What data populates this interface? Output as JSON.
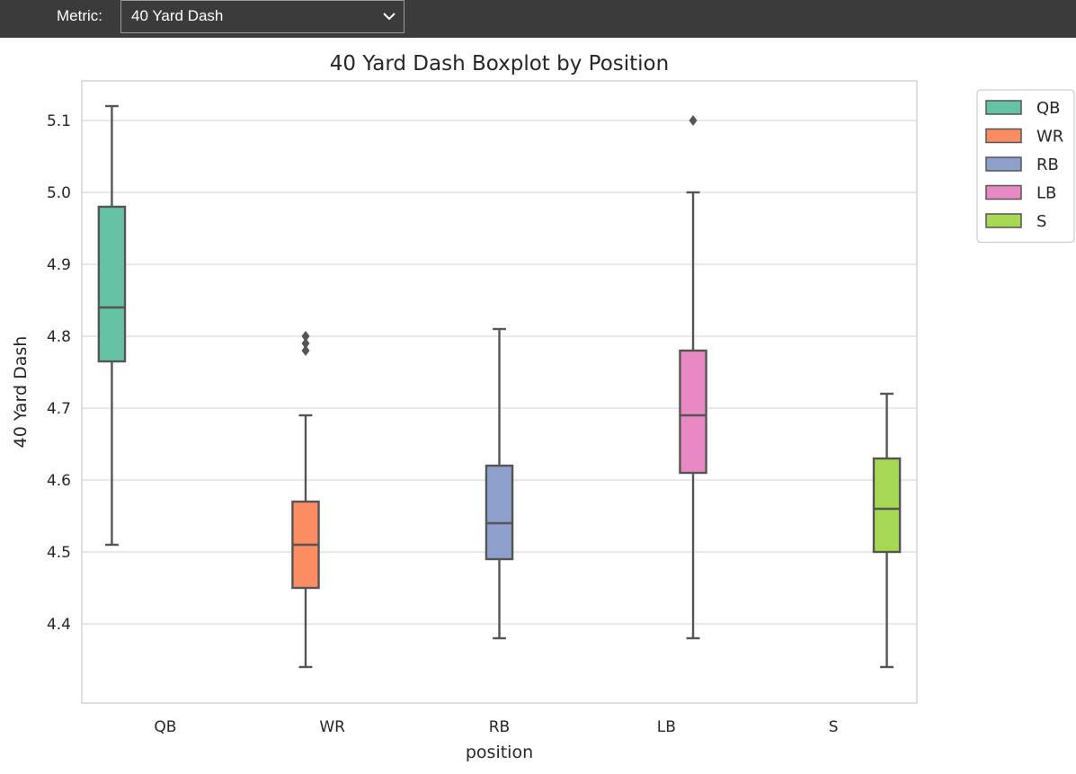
{
  "toolbar": {
    "metric_label": "Metric:",
    "metric_value": "40 Yard Dash"
  },
  "colors": {
    "QB": "#66c2a5",
    "WR": "#fc8d62",
    "RB": "#8da0cb",
    "LB": "#e78ac3",
    "S": "#a6d854",
    "line": "#555555",
    "grid": "#d9d9d9",
    "frame": "#cccccc"
  },
  "chart_data": {
    "type": "boxplot",
    "title": "40 Yard Dash Boxplot by Position",
    "xlabel": "position",
    "ylabel": "40 Yard Dash",
    "categories": [
      "QB",
      "WR",
      "RB",
      "LB",
      "S"
    ],
    "y_ticks": [
      "4.4",
      "4.5",
      "4.6",
      "4.7",
      "4.8",
      "4.9",
      "5.0",
      "5.1"
    ],
    "ylim": [
      4.29,
      5.155
    ],
    "grid": true,
    "legend": {
      "placement": "outside-top-right",
      "entries": [
        "QB",
        "WR",
        "RB",
        "LB",
        "S"
      ]
    },
    "series": [
      {
        "name": "QB",
        "whisker_low": 4.51,
        "q1": 4.765,
        "median": 4.84,
        "q3": 4.98,
        "whisker_high": 5.12,
        "outliers": []
      },
      {
        "name": "WR",
        "whisker_low": 4.34,
        "q1": 4.45,
        "median": 4.51,
        "q3": 4.57,
        "whisker_high": 4.69,
        "outliers": [
          4.78,
          4.79,
          4.8
        ]
      },
      {
        "name": "RB",
        "whisker_low": 4.38,
        "q1": 4.49,
        "median": 4.54,
        "q3": 4.62,
        "whisker_high": 4.81,
        "outliers": []
      },
      {
        "name": "LB",
        "whisker_low": 4.38,
        "q1": 4.61,
        "median": 4.69,
        "q3": 4.78,
        "whisker_high": 5.0,
        "outliers": [
          5.1
        ]
      },
      {
        "name": "S",
        "whisker_low": 4.34,
        "q1": 4.5,
        "median": 4.56,
        "q3": 4.63,
        "whisker_high": 4.72,
        "outliers": []
      }
    ]
  }
}
